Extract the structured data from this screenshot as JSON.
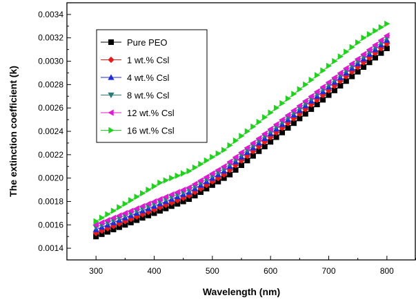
{
  "chart_data": {
    "type": "scatter",
    "xlabel": "Wavelength (nm)",
    "ylabel": "The extinction coefficient (k)",
    "xlim": [
      250,
      850
    ],
    "ylim": [
      0.0013,
      0.0035
    ],
    "x_ticks": [
      300,
      400,
      500,
      600,
      700,
      800
    ],
    "y_ticks": [
      0.0014,
      0.0016,
      0.0018,
      0.002,
      0.0022,
      0.0024,
      0.0026,
      0.0028,
      0.003,
      0.0032,
      0.0034
    ],
    "y_tick_labels": [
      "0.0014",
      "0.0016",
      "0.0018",
      "0.0020",
      "0.0022",
      "0.0024",
      "0.0026",
      "0.0028",
      "0.0030",
      "0.0032",
      "0.0034"
    ],
    "x_tick_labels": [
      "300",
      "400",
      "500",
      "600",
      "700",
      "800"
    ],
    "grid": false,
    "legend_position": "top-left",
    "x": [
      300,
      310,
      320,
      330,
      340,
      350,
      360,
      370,
      380,
      390,
      400,
      410,
      420,
      430,
      440,
      450,
      460,
      470,
      480,
      490,
      500,
      510,
      520,
      530,
      540,
      550,
      560,
      570,
      580,
      590,
      600,
      610,
      620,
      630,
      640,
      650,
      660,
      670,
      680,
      690,
      700,
      710,
      720,
      730,
      740,
      750,
      760,
      770,
      780,
      790,
      800
    ],
    "series": [
      {
        "name": "Pure  PEO",
        "color": "#000000",
        "marker": "square",
        "values": [
          0.0015,
          0.00152,
          0.00154,
          0.00156,
          0.00158,
          0.0016,
          0.00162,
          0.00164,
          0.00166,
          0.00168,
          0.0017,
          0.00172,
          0.00174,
          0.00176,
          0.00178,
          0.0018,
          0.00182,
          0.00185,
          0.00188,
          0.00191,
          0.00194,
          0.00197,
          0.002,
          0.00203,
          0.00207,
          0.00211,
          0.00215,
          0.00219,
          0.00223,
          0.00227,
          0.00231,
          0.00235,
          0.00239,
          0.00243,
          0.00247,
          0.00251,
          0.00255,
          0.00259,
          0.00263,
          0.00267,
          0.00271,
          0.00275,
          0.00279,
          0.00283,
          0.00287,
          0.00291,
          0.00295,
          0.00299,
          0.00303,
          0.00307,
          0.00311
        ]
      },
      {
        "name": "1 wt.% Csl",
        "color": "#e41a1c",
        "marker": "diamond",
        "values": [
          0.00153,
          0.00155,
          0.00157,
          0.00159,
          0.00161,
          0.00163,
          0.00165,
          0.00167,
          0.00169,
          0.00171,
          0.00173,
          0.00175,
          0.00177,
          0.00179,
          0.00181,
          0.00183,
          0.00185,
          0.00188,
          0.00191,
          0.00194,
          0.00197,
          0.002,
          0.00203,
          0.00207,
          0.00211,
          0.00215,
          0.00219,
          0.00223,
          0.00227,
          0.00231,
          0.00235,
          0.00239,
          0.00243,
          0.00247,
          0.00251,
          0.00255,
          0.00259,
          0.00263,
          0.00267,
          0.00271,
          0.00275,
          0.00279,
          0.00283,
          0.00287,
          0.00291,
          0.00295,
          0.00299,
          0.00303,
          0.00307,
          0.00311,
          0.00315
        ]
      },
      {
        "name": "4 wt.% Csl",
        "color": "#1f2bd6",
        "marker": "triangle-up",
        "values": [
          0.00156,
          0.00158,
          0.0016,
          0.00162,
          0.00164,
          0.00166,
          0.00168,
          0.0017,
          0.00172,
          0.00174,
          0.00176,
          0.00178,
          0.0018,
          0.00182,
          0.00184,
          0.00186,
          0.00188,
          0.00191,
          0.00194,
          0.00197,
          0.002,
          0.00203,
          0.00206,
          0.0021,
          0.00214,
          0.00218,
          0.00222,
          0.00226,
          0.0023,
          0.00234,
          0.00238,
          0.00242,
          0.00246,
          0.0025,
          0.00254,
          0.00258,
          0.00262,
          0.00266,
          0.0027,
          0.00274,
          0.00278,
          0.00282,
          0.00286,
          0.0029,
          0.00294,
          0.00298,
          0.00302,
          0.00306,
          0.0031,
          0.00314,
          0.00318
        ]
      },
      {
        "name": "8 wt.% Csl",
        "color": "#2a7a7a",
        "marker": "triangle-down",
        "values": [
          0.00158,
          0.0016,
          0.00162,
          0.00164,
          0.00166,
          0.00168,
          0.0017,
          0.00172,
          0.00174,
          0.00176,
          0.00178,
          0.0018,
          0.00182,
          0.00184,
          0.00186,
          0.00188,
          0.0019,
          0.00193,
          0.00196,
          0.00199,
          0.00202,
          0.00205,
          0.00208,
          0.00212,
          0.00216,
          0.0022,
          0.00224,
          0.00228,
          0.00232,
          0.00236,
          0.0024,
          0.00244,
          0.00248,
          0.00252,
          0.00256,
          0.0026,
          0.00264,
          0.00268,
          0.00272,
          0.00276,
          0.0028,
          0.00284,
          0.00288,
          0.00292,
          0.00296,
          0.003,
          0.00304,
          0.00308,
          0.00312,
          0.00316,
          0.0032
        ]
      },
      {
        "name": "12 wt.% Csl",
        "color": "#e01ad0",
        "marker": "triangle-left",
        "values": [
          0.0016,
          0.00162,
          0.00164,
          0.00166,
          0.00168,
          0.0017,
          0.00172,
          0.00174,
          0.00176,
          0.00178,
          0.0018,
          0.00182,
          0.00184,
          0.00186,
          0.00188,
          0.0019,
          0.00192,
          0.00195,
          0.00198,
          0.00201,
          0.00204,
          0.00207,
          0.0021,
          0.00214,
          0.00218,
          0.00222,
          0.00226,
          0.0023,
          0.00234,
          0.00238,
          0.00242,
          0.00246,
          0.0025,
          0.00254,
          0.00258,
          0.00262,
          0.00266,
          0.0027,
          0.00274,
          0.00278,
          0.00282,
          0.00286,
          0.0029,
          0.00294,
          0.00298,
          0.00302,
          0.00306,
          0.0031,
          0.00314,
          0.00318,
          0.00322
        ]
      },
      {
        "name": "16 wt.% Csl",
        "color": "#22d11f",
        "marker": "triangle-right",
        "values": [
          0.00163,
          0.00166,
          0.00169,
          0.00172,
          0.00175,
          0.00178,
          0.00181,
          0.00184,
          0.00187,
          0.0019,
          0.00193,
          0.00196,
          0.00198,
          0.002,
          0.00202,
          0.00204,
          0.00206,
          0.00209,
          0.00212,
          0.00215,
          0.00218,
          0.00221,
          0.00224,
          0.00228,
          0.00232,
          0.00236,
          0.0024,
          0.00244,
          0.00248,
          0.00252,
          0.00256,
          0.0026,
          0.00264,
          0.00268,
          0.00272,
          0.00276,
          0.0028,
          0.00284,
          0.00288,
          0.00292,
          0.00296,
          0.003,
          0.00304,
          0.00308,
          0.00312,
          0.00316,
          0.0032,
          0.00323,
          0.00326,
          0.00329,
          0.00332
        ]
      }
    ]
  }
}
